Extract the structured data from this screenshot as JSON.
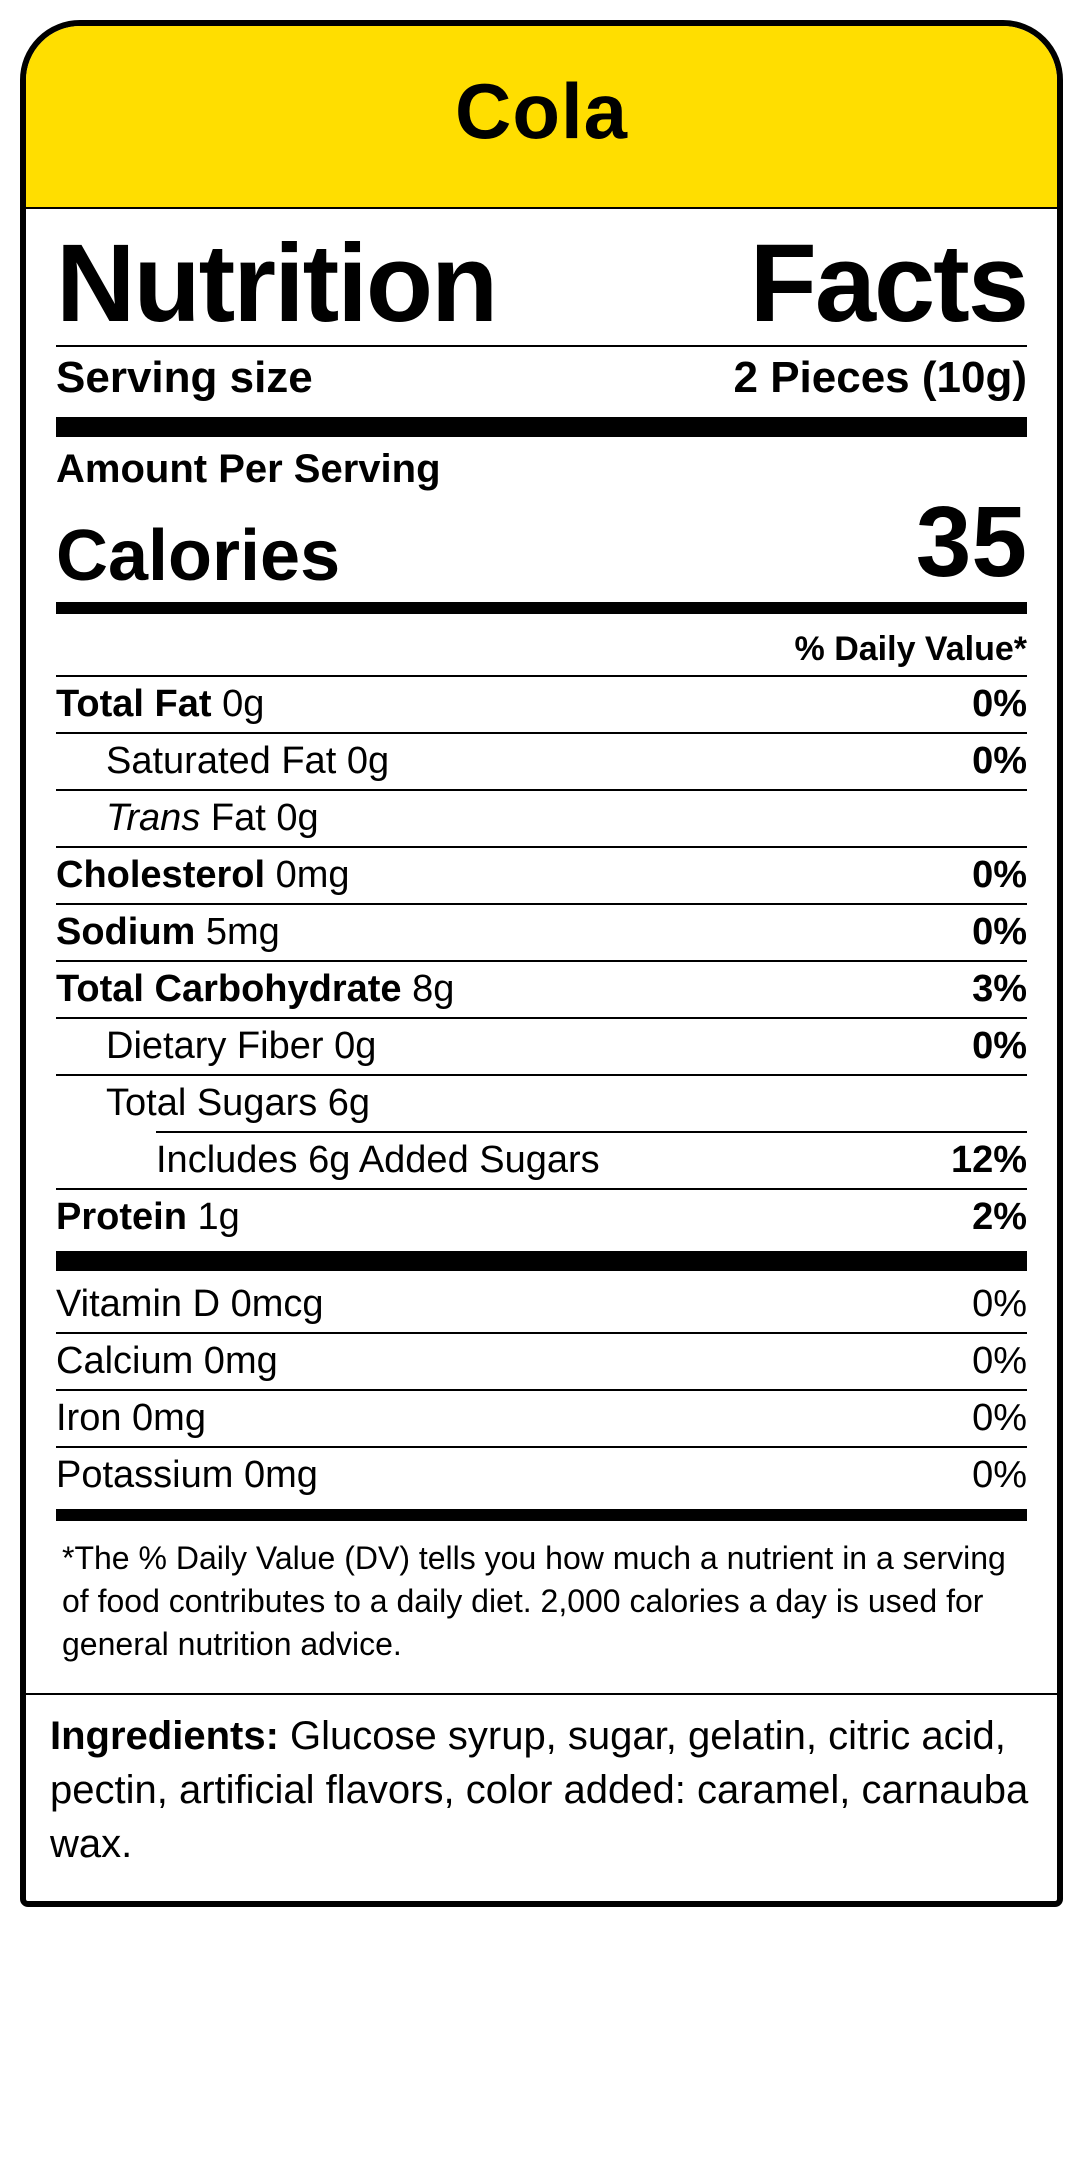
{
  "header": {
    "product_name": "Cola",
    "bg_color": "#ffde00"
  },
  "panel": {
    "title_left": "Nutrition",
    "title_right": "Facts",
    "serving_label": "Serving size",
    "serving_value": "2 Pieces (10g)",
    "amount_per_serving": "Amount Per Serving",
    "calories_label": "Calories",
    "calories_value": "35",
    "dv_header": "% Daily Value*",
    "rows": {
      "total_fat": {
        "name": "Total Fat",
        "amount": "0g",
        "dv": "0%"
      },
      "sat_fat": {
        "name": "Saturated Fat",
        "amount": "0g",
        "dv": "0%"
      },
      "trans_fat": {
        "name_italic": "Trans",
        "name_rest": " Fat",
        "amount": "0g"
      },
      "cholesterol": {
        "name": "Cholesterol",
        "amount": "0mg",
        "dv": "0%"
      },
      "sodium": {
        "name": "Sodium",
        "amount": "5mg",
        "dv": "0%"
      },
      "total_carb": {
        "name": "Total Carbohydrate",
        "amount": "8g",
        "dv": "3%"
      },
      "fiber": {
        "name": "Dietary Fiber",
        "amount": "0g",
        "dv": "0%"
      },
      "total_sugars": {
        "name": "Total Sugars",
        "amount": "6g"
      },
      "added_sugars": {
        "text": "Includes 6g Added Sugars",
        "dv": "12%"
      },
      "protein": {
        "name": "Protein",
        "amount": "1g",
        "dv": "2%"
      }
    },
    "vitamins": [
      {
        "name": "Vitamin D",
        "amount": "0mcg",
        "dv": "0%"
      },
      {
        "name": "Calcium",
        "amount": "0mg",
        "dv": "0%"
      },
      {
        "name": "Iron",
        "amount": "0mg",
        "dv": "0%"
      },
      {
        "name": "Potassium",
        "amount": "0mg",
        "dv": "0%"
      }
    ],
    "footnote": "The % Daily Value (DV) tells you how much a nutrient in a serving of food contributes to a daily diet. 2,000 calories a day is used for general nutrition advice."
  },
  "ingredients": {
    "label": "Ingredients:",
    "text": " Glucose syrup, sugar, gelatin, citric acid, pectin, artificial flavors, color added: caramel, carnauba wax."
  }
}
